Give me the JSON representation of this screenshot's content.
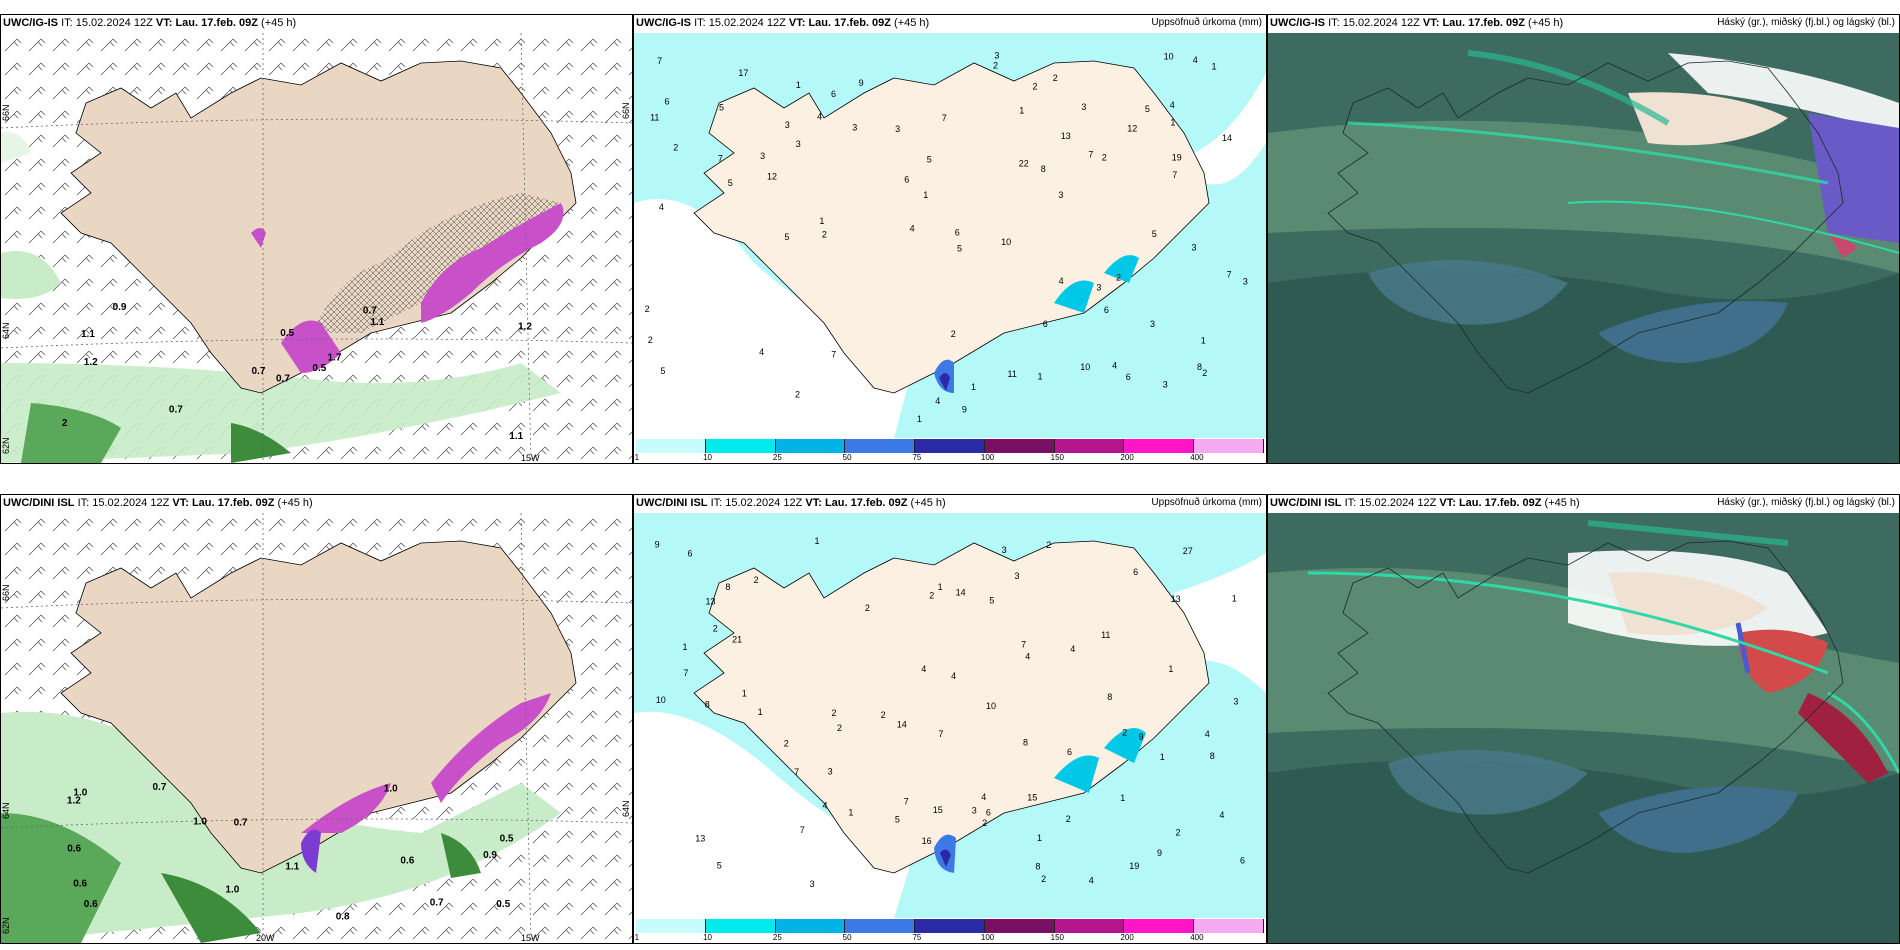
{
  "rows": [
    {
      "model": "UWC/IG-IS",
      "it_label": "IT:",
      "init": "15.02.2024 12Z",
      "vt_label": "VT:",
      "valid": "Lau. 17.feb. 09Z",
      "lead": "(+45 h)"
    },
    {
      "model": "UWC/DINI ISL",
      "it_label": "IT:",
      "init": "15.02.2024 12Z",
      "vt_label": "VT:",
      "valid": "Lau. 17.feb. 09Z",
      "lead": "(+45 h)"
    }
  ],
  "precip_title": "Uppsöfnuð úrkoma (mm)",
  "cloud_title": "Háský (gr.), miðský (fj.bl.) og lágský (bl.)",
  "colorbar": {
    "labels": [
      "1",
      "10",
      "25",
      "50",
      "75",
      "100",
      "150",
      "200",
      "400"
    ],
    "colors": [
      "#c8fbfb",
      "#00ecec",
      "#00b4e6",
      "#3c78e6",
      "#2a2aa8",
      "#7a0f64",
      "#b4148c",
      "#ff14c8",
      "#f5aaf0"
    ]
  },
  "axis": {
    "lat_top": "66N",
    "lat_mid": "64N",
    "lat_bot": "62N",
    "lon_left": "20W",
    "lon_right": "15W"
  },
  "wind_values_top": [
    "0.7",
    "1.1",
    "0.7",
    "2",
    "1.7",
    "0.7",
    "0.7",
    "0.5",
    "1.1",
    "0.5",
    "0.9",
    "1.1",
    "1.2",
    "1.2"
  ],
  "wind_values_bottom": [
    "0.6",
    "0.9",
    "0.6",
    "0.7",
    "0.7",
    "0.7",
    "0.6",
    "1.0",
    "1.0",
    "0.8",
    "1.2",
    "0.6",
    "1.0",
    "0.5",
    "1.0",
    "0.5",
    "1.1"
  ],
  "precip_values_top": [
    "2",
    "3",
    "3",
    "4",
    "5",
    "1",
    "4",
    "2",
    "4",
    "3",
    "7",
    "4",
    "7",
    "4",
    "4",
    "2",
    "1",
    "3",
    "3",
    "11",
    "6",
    "3",
    "1",
    "2",
    "3",
    "12",
    "1",
    "2",
    "17",
    "5",
    "2",
    "1",
    "4",
    "7",
    "6",
    "1",
    "3",
    "1",
    "2",
    "2",
    "2",
    "3",
    "6",
    "4",
    "1",
    "14",
    "11",
    "5",
    "1",
    "2",
    "5",
    "8",
    "4",
    "3",
    "7",
    "6",
    "5",
    "6",
    "10",
    "22",
    "12",
    "7",
    "19",
    "1",
    "9",
    "5",
    "5",
    "3",
    "13",
    "10",
    "6",
    "8",
    "7",
    "6",
    "5",
    "3",
    "9",
    "2",
    "3",
    "2",
    "7",
    "10"
  ],
  "precip_values_bottom": [
    "2",
    "4",
    "4",
    "3",
    "2",
    "4",
    "4",
    "6",
    "2",
    "1",
    "1",
    "2",
    "2",
    "3",
    "7",
    "5",
    "2",
    "13",
    "1",
    "1",
    "1",
    "2",
    "3",
    "6",
    "5",
    "1",
    "1",
    "8",
    "2",
    "2",
    "6",
    "3",
    "7",
    "8",
    "1",
    "9",
    "4",
    "3",
    "1",
    "2",
    "5",
    "8",
    "11",
    "14",
    "16",
    "27",
    "21",
    "15",
    "8",
    "13",
    "7",
    "19",
    "10",
    "9",
    "7",
    "4",
    "6",
    "1",
    "4",
    "2",
    "8",
    "4",
    "13",
    "14",
    "15",
    "7",
    "2",
    "9",
    "10",
    "8",
    "3",
    "4",
    "6",
    "7",
    "2",
    "1",
    "2"
  ]
}
